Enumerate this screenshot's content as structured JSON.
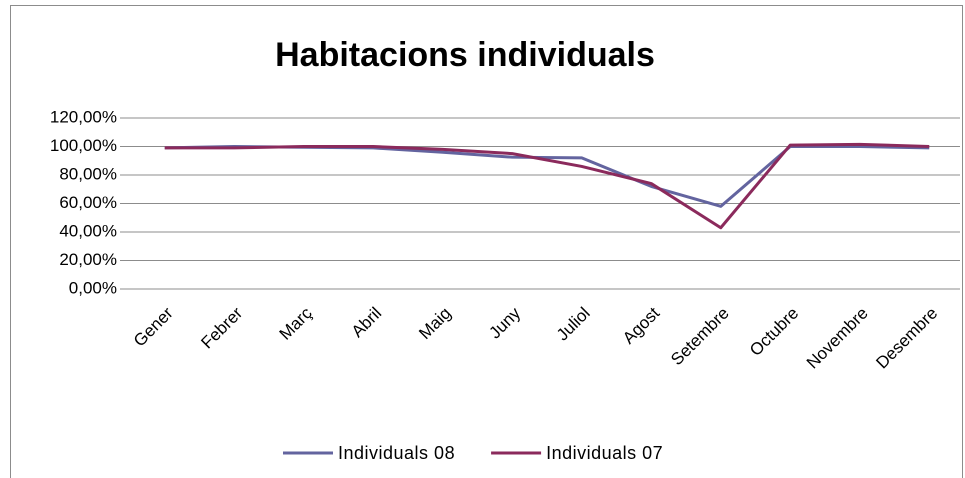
{
  "chart_data": {
    "type": "line",
    "title": "Habitacions individuals",
    "categories": [
      "Gener",
      "Febrer",
      "Març",
      "Abril",
      "Maig",
      "Juny",
      "Juliol",
      "Agost",
      "Setembre",
      "Octubre",
      "Novembre",
      "Desembre"
    ],
    "series": [
      {
        "name": "Individuals 08",
        "color": "#63649f",
        "values": [
          99,
          100,
          99.5,
          99,
          96,
          92.5,
          92,
          72,
          58,
          100,
          100,
          99
        ]
      },
      {
        "name": "Individuals 07",
        "color": "#8b2a5c",
        "values": [
          99,
          99,
          100,
          100,
          98,
          95,
          86,
          74,
          43,
          101,
          101.5,
          100
        ]
      }
    ],
    "ylim": [
      0,
      120
    ],
    "yticks": [
      {
        "value": 0,
        "label": "0,00%"
      },
      {
        "value": 20,
        "label": "20,00%"
      },
      {
        "value": 40,
        "label": "40,00%"
      },
      {
        "value": 60,
        "label": "60,00%"
      },
      {
        "value": 80,
        "label": "80,00%"
      },
      {
        "value": 100,
        "label": "100,00%"
      },
      {
        "value": 120,
        "label": "120,00%"
      }
    ],
    "grid": true,
    "legend": "bottom"
  }
}
